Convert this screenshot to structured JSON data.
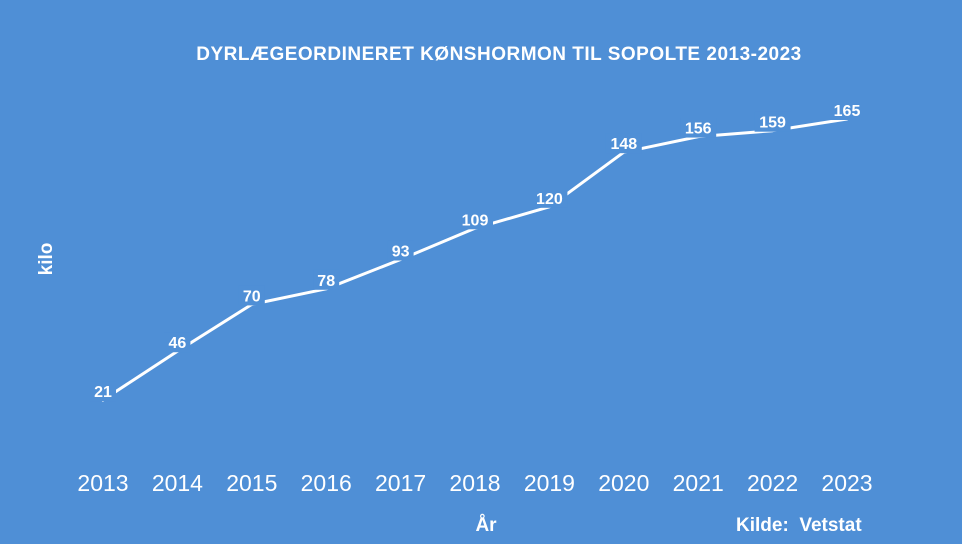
{
  "chart_data": {
    "type": "line",
    "title": "DYRLÆGEORDINERET KØNSHORMON TIL SOPOLTE 2013-2023",
    "xlabel": "År",
    "ylabel": "kilo",
    "x": [
      "2013",
      "2014",
      "2015",
      "2016",
      "2017",
      "2018",
      "2019",
      "2020",
      "2021",
      "2022",
      "2023"
    ],
    "series": [
      {
        "values": [
          21,
          46,
          70,
          78,
          93,
          109,
          120,
          148,
          156,
          159,
          165
        ]
      }
    ],
    "ylim": [
      0,
      175
    ],
    "grid": false,
    "line_color": "#ffffff",
    "background_color": "#4f8fd6"
  },
  "source": "Kilde:  Vetstat"
}
